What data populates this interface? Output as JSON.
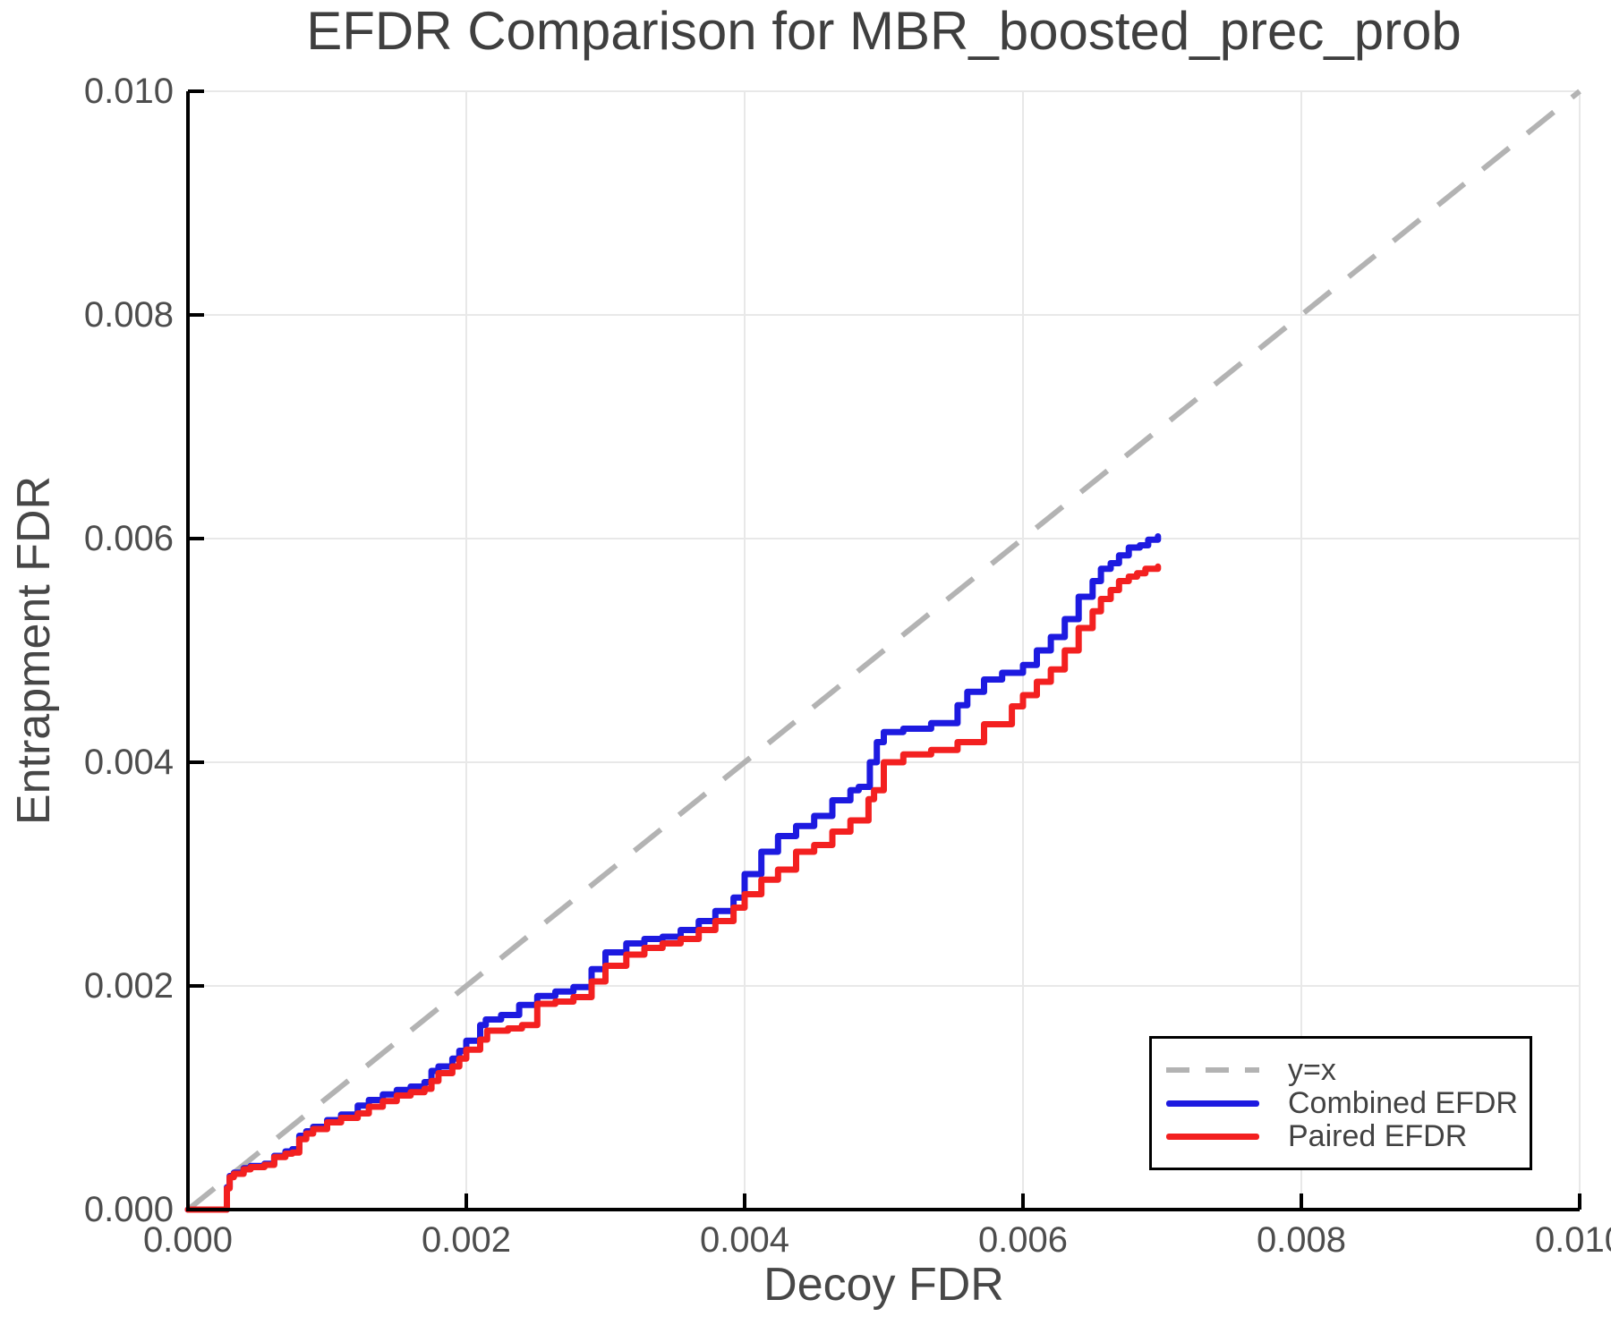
{
  "chart_data": {
    "type": "line",
    "title": "EFDR Comparison for MBR_boosted_prec_prob",
    "xlabel": "Decoy FDR",
    "ylabel": "Entrapment FDR",
    "xlim": [
      0.0,
      0.01
    ],
    "ylim": [
      0.0,
      0.01
    ],
    "grid": true,
    "x_ticks": {
      "values": [
        0.0,
        0.002,
        0.004,
        0.006,
        0.008,
        0.01
      ],
      "labels": [
        "0.000",
        "0.002",
        "0.004",
        "0.006",
        "0.008",
        "0.010"
      ]
    },
    "y_ticks": {
      "values": [
        0.0,
        0.002,
        0.004,
        0.006,
        0.008,
        0.01
      ],
      "labels": [
        "0.000",
        "0.002",
        "0.004",
        "0.006",
        "0.008",
        "0.010"
      ]
    },
    "colors": {
      "grid": "#e8e8e8",
      "axis": "#000000",
      "tick_text": "#4d4d4d",
      "title_text": "#3f3f3f",
      "reference": "#b3b3b3",
      "combined": "#1d1ae0",
      "paired": "#f32020"
    },
    "reference_line": {
      "label": "y=x",
      "from": [
        0.0,
        0.0
      ],
      "to": [
        0.01,
        0.01
      ],
      "color": "#b3b3b3",
      "style": "dashed"
    },
    "legend": {
      "position": "lower right",
      "entries": [
        {
          "label": "y=x",
          "color": "#b3b3b3",
          "dash": true
        },
        {
          "label": "Combined EFDR",
          "color": "#1d1ae0",
          "dash": false
        },
        {
          "label": "Paired EFDR",
          "color": "#f32020",
          "dash": false
        }
      ]
    },
    "series": [
      {
        "name": "Combined EFDR",
        "color": "#1d1ae0",
        "points": [
          [
            0.0,
            0.0
          ],
          [
            0.00026,
            0.0
          ],
          [
            0.00028,
            0.0002
          ],
          [
            0.0003,
            0.0003
          ],
          [
            0.00033,
            0.00033
          ],
          [
            0.0004,
            0.00037
          ],
          [
            0.00045,
            0.00039
          ],
          [
            0.00055,
            0.00041
          ],
          [
            0.00062,
            0.00048
          ],
          [
            0.0007,
            0.00052
          ],
          [
            0.00075,
            0.00054
          ],
          [
            0.0008,
            0.00066
          ],
          [
            0.00085,
            0.0007
          ],
          [
            0.0009,
            0.00074
          ],
          [
            0.001,
            0.0008
          ],
          [
            0.0011,
            0.00085
          ],
          [
            0.00122,
            0.00093
          ],
          [
            0.0013,
            0.00098
          ],
          [
            0.0014,
            0.00103
          ],
          [
            0.0015,
            0.00107
          ],
          [
            0.0016,
            0.0011
          ],
          [
            0.0017,
            0.00114
          ],
          [
            0.00175,
            0.00124
          ],
          [
            0.0018,
            0.00128
          ],
          [
            0.0019,
            0.00135
          ],
          [
            0.00195,
            0.00142
          ],
          [
            0.002,
            0.00151
          ],
          [
            0.0021,
            0.00165
          ],
          [
            0.00214,
            0.0017
          ],
          [
            0.00225,
            0.00174
          ],
          [
            0.00238,
            0.00183
          ],
          [
            0.00251,
            0.00191
          ],
          [
            0.00264,
            0.00195
          ],
          [
            0.00277,
            0.00199
          ],
          [
            0.0029,
            0.00215
          ],
          [
            0.003,
            0.0023
          ],
          [
            0.00315,
            0.00238
          ],
          [
            0.00328,
            0.00242
          ],
          [
            0.00341,
            0.00244
          ],
          [
            0.00354,
            0.0025
          ],
          [
            0.00367,
            0.00258
          ],
          [
            0.00379,
            0.00267
          ],
          [
            0.00392,
            0.00279
          ],
          [
            0.004,
            0.003
          ],
          [
            0.00412,
            0.0032
          ],
          [
            0.00424,
            0.00334
          ],
          [
            0.00437,
            0.00343
          ],
          [
            0.0045,
            0.00352
          ],
          [
            0.00463,
            0.00366
          ],
          [
            0.00476,
            0.00375
          ],
          [
            0.00482,
            0.00378
          ],
          [
            0.0049,
            0.004
          ],
          [
            0.00495,
            0.00418
          ],
          [
            0.005,
            0.00427
          ],
          [
            0.00514,
            0.0043
          ],
          [
            0.00534,
            0.00435
          ],
          [
            0.00553,
            0.00451
          ],
          [
            0.0056,
            0.00463
          ],
          [
            0.00572,
            0.00474
          ],
          [
            0.00585,
            0.0048
          ],
          [
            0.006,
            0.00487
          ],
          [
            0.0061,
            0.005
          ],
          [
            0.0062,
            0.00512
          ],
          [
            0.0063,
            0.00528
          ],
          [
            0.0064,
            0.00548
          ],
          [
            0.0065,
            0.00562
          ],
          [
            0.00656,
            0.00573
          ],
          [
            0.00663,
            0.00578
          ],
          [
            0.00669,
            0.00585
          ],
          [
            0.00676,
            0.00592
          ],
          [
            0.00684,
            0.00594
          ],
          [
            0.0069,
            0.00599
          ],
          [
            0.00697,
            0.00602
          ]
        ]
      },
      {
        "name": "Paired EFDR",
        "color": "#f32020",
        "points": [
          [
            0.0,
            0.0
          ],
          [
            0.00026,
            0.0
          ],
          [
            0.00028,
            0.00019
          ],
          [
            0.0003,
            0.00029
          ],
          [
            0.00033,
            0.00032
          ],
          [
            0.0004,
            0.00036
          ],
          [
            0.00045,
            0.00038
          ],
          [
            0.00055,
            0.0004
          ],
          [
            0.00062,
            0.00047
          ],
          [
            0.0007,
            0.0005
          ],
          [
            0.00075,
            0.00051
          ],
          [
            0.0008,
            0.00063
          ],
          [
            0.00085,
            0.00068
          ],
          [
            0.0009,
            0.00072
          ],
          [
            0.001,
            0.00078
          ],
          [
            0.0011,
            0.00082
          ],
          [
            0.00122,
            0.00086
          ],
          [
            0.0013,
            0.00092
          ],
          [
            0.0014,
            0.00097
          ],
          [
            0.0015,
            0.00102
          ],
          [
            0.0016,
            0.00105
          ],
          [
            0.0017,
            0.00108
          ],
          [
            0.00175,
            0.00115
          ],
          [
            0.0018,
            0.00122
          ],
          [
            0.0019,
            0.00128
          ],
          [
            0.00195,
            0.00135
          ],
          [
            0.002,
            0.00143
          ],
          [
            0.0021,
            0.00152
          ],
          [
            0.00215,
            0.0016
          ],
          [
            0.0023,
            0.00162
          ],
          [
            0.0024,
            0.00165
          ],
          [
            0.00251,
            0.00184
          ],
          [
            0.00264,
            0.00186
          ],
          [
            0.00277,
            0.0019
          ],
          [
            0.0029,
            0.00204
          ],
          [
            0.003,
            0.00218
          ],
          [
            0.00315,
            0.00228
          ],
          [
            0.00328,
            0.00234
          ],
          [
            0.00341,
            0.00238
          ],
          [
            0.00354,
            0.00242
          ],
          [
            0.00367,
            0.0025
          ],
          [
            0.00379,
            0.00258
          ],
          [
            0.00392,
            0.0027
          ],
          [
            0.004,
            0.00282
          ],
          [
            0.00412,
            0.00295
          ],
          [
            0.00424,
            0.00304
          ],
          [
            0.00437,
            0.0032
          ],
          [
            0.0045,
            0.00326
          ],
          [
            0.00463,
            0.00338
          ],
          [
            0.00476,
            0.00348
          ],
          [
            0.00489,
            0.00367
          ],
          [
            0.00493,
            0.00375
          ],
          [
            0.005,
            0.004
          ],
          [
            0.00514,
            0.00407
          ],
          [
            0.00534,
            0.00411
          ],
          [
            0.00553,
            0.00418
          ],
          [
            0.00572,
            0.00434
          ],
          [
            0.00592,
            0.0045
          ],
          [
            0.006,
            0.0046
          ],
          [
            0.0061,
            0.00472
          ],
          [
            0.0062,
            0.00483
          ],
          [
            0.0063,
            0.005
          ],
          [
            0.0064,
            0.0052
          ],
          [
            0.0065,
            0.00535
          ],
          [
            0.00656,
            0.00546
          ],
          [
            0.00663,
            0.00554
          ],
          [
            0.00669,
            0.00562
          ],
          [
            0.00676,
            0.00566
          ],
          [
            0.00682,
            0.00569
          ],
          [
            0.00688,
            0.00573
          ],
          [
            0.00697,
            0.00575
          ]
        ]
      }
    ]
  }
}
